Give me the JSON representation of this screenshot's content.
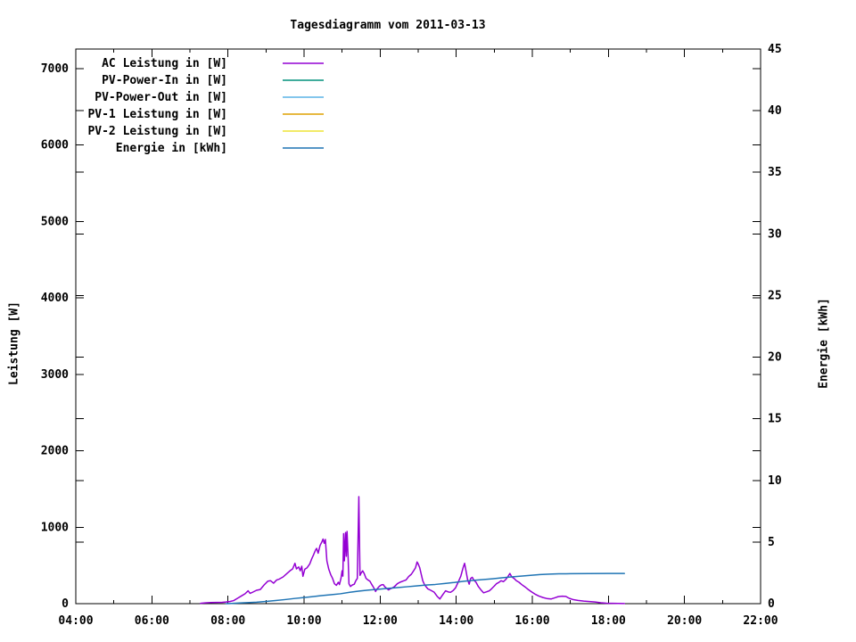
{
  "title": "Tagesdiagramm vom 2011-03-13",
  "colors": {
    "background": "#ffffff",
    "foreground": "#000000",
    "ac_leistung": "#9400d3",
    "pv_power_in": "#00917c",
    "pv_power_out": "#5ab4e5",
    "pv1_leistung": "#dda000",
    "pv2_leistung": "#eee437",
    "energie": "#1f74b4"
  },
  "chart_data": {
    "type": "line",
    "title": "Tagesdiagramm vom 2011-03-13",
    "grid": false,
    "legend_position": "top-left",
    "x_axis": {
      "label": "",
      "min": 4,
      "max": 22,
      "major_tick_hours": 2,
      "minor_tick_hours": 1,
      "tick_labels": [
        "04:00",
        "06:00",
        "08:00",
        "10:00",
        "12:00",
        "14:00",
        "16:00",
        "18:00",
        "20:00",
        "22:00"
      ]
    },
    "y_left": {
      "label": "Leistung [W]",
      "min": 0,
      "max": 7256,
      "tick_step": 1000,
      "tick_values": [
        0,
        1000,
        2000,
        3000,
        4000,
        5000,
        6000,
        7000
      ],
      "tick_labels": [
        "0",
        "1000",
        "2000",
        "3000",
        "4000",
        "5000",
        "6000",
        "7000"
      ]
    },
    "y_right": {
      "label": "Energie [kWh]",
      "min": 0,
      "max": 45,
      "tick_step": 5,
      "tick_values": [
        0,
        5,
        10,
        15,
        20,
        25,
        30,
        35,
        40,
        45
      ],
      "tick_labels": [
        "0",
        "5",
        "10",
        "15",
        "20",
        "25",
        "30",
        "35",
        "40",
        "45"
      ]
    },
    "series": [
      {
        "name": "AC Leistung in [W]",
        "color": "#9400d3",
        "axis": "left",
        "points": [
          [
            7.28,
            4
          ],
          [
            7.4,
            10
          ],
          [
            7.55,
            14
          ],
          [
            7.7,
            16
          ],
          [
            7.85,
            18
          ],
          [
            7.95,
            22
          ],
          [
            8.05,
            28
          ],
          [
            8.15,
            40
          ],
          [
            8.25,
            70
          ],
          [
            8.35,
            100
          ],
          [
            8.45,
            130
          ],
          [
            8.53,
            168
          ],
          [
            8.58,
            135
          ],
          [
            8.65,
            150
          ],
          [
            8.75,
            175
          ],
          [
            8.85,
            185
          ],
          [
            8.95,
            245
          ],
          [
            9.05,
            295
          ],
          [
            9.12,
            300
          ],
          [
            9.2,
            268
          ],
          [
            9.28,
            310
          ],
          [
            9.35,
            322
          ],
          [
            9.45,
            350
          ],
          [
            9.55,
            395
          ],
          [
            9.63,
            430
          ],
          [
            9.7,
            455
          ],
          [
            9.76,
            528
          ],
          [
            9.8,
            455
          ],
          [
            9.86,
            480
          ],
          [
            9.9,
            430
          ],
          [
            9.94,
            490
          ],
          [
            9.97,
            358
          ],
          [
            10.02,
            450
          ],
          [
            10.08,
            470
          ],
          [
            10.15,
            520
          ],
          [
            10.2,
            585
          ],
          [
            10.25,
            640
          ],
          [
            10.3,
            700
          ],
          [
            10.33,
            723
          ],
          [
            10.37,
            660
          ],
          [
            10.42,
            760
          ],
          [
            10.47,
            810
          ],
          [
            10.5,
            845
          ],
          [
            10.53,
            790
          ],
          [
            10.56,
            840
          ],
          [
            10.6,
            560
          ],
          [
            10.65,
            450
          ],
          [
            10.7,
            380
          ],
          [
            10.75,
            330
          ],
          [
            10.8,
            260
          ],
          [
            10.85,
            240
          ],
          [
            10.9,
            280
          ],
          [
            10.93,
            250
          ],
          [
            10.97,
            330
          ],
          [
            11.0,
            430
          ],
          [
            11.02,
            360
          ],
          [
            11.04,
            915
          ],
          [
            11.06,
            560
          ],
          [
            11.09,
            930
          ],
          [
            11.11,
            620
          ],
          [
            11.13,
            945
          ],
          [
            11.16,
            580
          ],
          [
            11.18,
            260
          ],
          [
            11.22,
            225
          ],
          [
            11.27,
            245
          ],
          [
            11.32,
            255
          ],
          [
            11.36,
            300
          ],
          [
            11.4,
            330
          ],
          [
            11.44,
            1400
          ],
          [
            11.47,
            370
          ],
          [
            11.5,
            400
          ],
          [
            11.54,
            430
          ],
          [
            11.58,
            395
          ],
          [
            11.63,
            330
          ],
          [
            11.68,
            310
          ],
          [
            11.73,
            295
          ],
          [
            11.78,
            250
          ],
          [
            11.83,
            210
          ],
          [
            11.88,
            160
          ],
          [
            11.93,
            200
          ],
          [
            11.98,
            228
          ],
          [
            12.03,
            245
          ],
          [
            12.08,
            250
          ],
          [
            12.12,
            222
          ],
          [
            12.17,
            200
          ],
          [
            12.22,
            180
          ],
          [
            12.27,
            195
          ],
          [
            12.32,
            205
          ],
          [
            12.38,
            225
          ],
          [
            12.45,
            260
          ],
          [
            12.52,
            280
          ],
          [
            12.6,
            295
          ],
          [
            12.68,
            310
          ],
          [
            12.75,
            355
          ],
          [
            12.82,
            385
          ],
          [
            12.88,
            430
          ],
          [
            12.93,
            470
          ],
          [
            12.97,
            545
          ],
          [
            13.0,
            520
          ],
          [
            13.04,
            470
          ],
          [
            13.08,
            385
          ],
          [
            13.12,
            300
          ],
          [
            13.17,
            245
          ],
          [
            13.25,
            195
          ],
          [
            13.33,
            175
          ],
          [
            13.42,
            150
          ],
          [
            13.5,
            95
          ],
          [
            13.57,
            62
          ],
          [
            13.65,
            120
          ],
          [
            13.72,
            168
          ],
          [
            13.78,
            155
          ],
          [
            13.85,
            148
          ],
          [
            13.92,
            172
          ],
          [
            13.98,
            205
          ],
          [
            14.05,
            280
          ],
          [
            14.12,
            360
          ],
          [
            14.18,
            470
          ],
          [
            14.22,
            528
          ],
          [
            14.26,
            420
          ],
          [
            14.3,
            310
          ],
          [
            14.34,
            255
          ],
          [
            14.38,
            330
          ],
          [
            14.42,
            345
          ],
          [
            14.46,
            310
          ],
          [
            14.52,
            280
          ],
          [
            14.58,
            225
          ],
          [
            14.65,
            180
          ],
          [
            14.72,
            142
          ],
          [
            14.8,
            155
          ],
          [
            14.87,
            168
          ],
          [
            14.93,
            195
          ],
          [
            15.0,
            230
          ],
          [
            15.06,
            262
          ],
          [
            15.12,
            278
          ],
          [
            15.18,
            300
          ],
          [
            15.24,
            288
          ],
          [
            15.3,
            315
          ],
          [
            15.36,
            355
          ],
          [
            15.41,
            395
          ],
          [
            15.46,
            350
          ],
          [
            15.52,
            330
          ],
          [
            15.58,
            300
          ],
          [
            15.65,
            280
          ],
          [
            15.72,
            250
          ],
          [
            15.8,
            222
          ],
          [
            15.88,
            190
          ],
          [
            15.97,
            158
          ],
          [
            16.07,
            125
          ],
          [
            16.17,
            100
          ],
          [
            16.28,
            80
          ],
          [
            16.4,
            65
          ],
          [
            16.5,
            62
          ],
          [
            16.6,
            78
          ],
          [
            16.68,
            92
          ],
          [
            16.78,
            98
          ],
          [
            16.88,
            95
          ],
          [
            16.97,
            70
          ],
          [
            17.08,
            52
          ],
          [
            17.2,
            42
          ],
          [
            17.35,
            33
          ],
          [
            17.5,
            28
          ],
          [
            17.65,
            22
          ],
          [
            17.8,
            12
          ],
          [
            17.95,
            6
          ],
          [
            18.1,
            4
          ],
          [
            18.42,
            2
          ]
        ]
      },
      {
        "name": "PV-Power-In in [W]",
        "color": "#00917c",
        "axis": "left",
        "points": []
      },
      {
        "name": "PV-Power-Out in [W]",
        "color": "#5ab4e5",
        "axis": "left",
        "points": []
      },
      {
        "name": "PV-1 Leistung in [W]",
        "color": "#dda000",
        "axis": "left",
        "points": []
      },
      {
        "name": "PV-2 Leistung in [W]",
        "color": "#eee437",
        "axis": "left",
        "points": []
      },
      {
        "name": "Energie in [kWh]",
        "color": "#1f74b4",
        "axis": "right",
        "points": [
          [
            7.95,
            0.0
          ],
          [
            8.1,
            0.02
          ],
          [
            8.3,
            0.05
          ],
          [
            8.5,
            0.08
          ],
          [
            8.75,
            0.12
          ],
          [
            9.0,
            0.18
          ],
          [
            9.25,
            0.25
          ],
          [
            9.5,
            0.33
          ],
          [
            9.75,
            0.42
          ],
          [
            10.0,
            0.5
          ],
          [
            10.2,
            0.56
          ],
          [
            10.45,
            0.65
          ],
          [
            10.7,
            0.72
          ],
          [
            10.95,
            0.8
          ],
          [
            11.2,
            0.92
          ],
          [
            11.45,
            1.02
          ],
          [
            11.7,
            1.1
          ],
          [
            11.95,
            1.17
          ],
          [
            12.2,
            1.24
          ],
          [
            12.45,
            1.3
          ],
          [
            12.7,
            1.37
          ],
          [
            12.95,
            1.44
          ],
          [
            13.2,
            1.51
          ],
          [
            13.45,
            1.56
          ],
          [
            13.7,
            1.64
          ],
          [
            13.95,
            1.72
          ],
          [
            14.2,
            1.82
          ],
          [
            14.45,
            1.89
          ],
          [
            14.7,
            1.95
          ],
          [
            14.95,
            2.02
          ],
          [
            15.2,
            2.1
          ],
          [
            15.45,
            2.17
          ],
          [
            15.7,
            2.23
          ],
          [
            15.95,
            2.3
          ],
          [
            16.2,
            2.36
          ],
          [
            16.45,
            2.4
          ],
          [
            16.7,
            2.42
          ],
          [
            17.0,
            2.43
          ],
          [
            17.5,
            2.44
          ],
          [
            18.0,
            2.45
          ],
          [
            18.42,
            2.45
          ]
        ]
      }
    ]
  }
}
